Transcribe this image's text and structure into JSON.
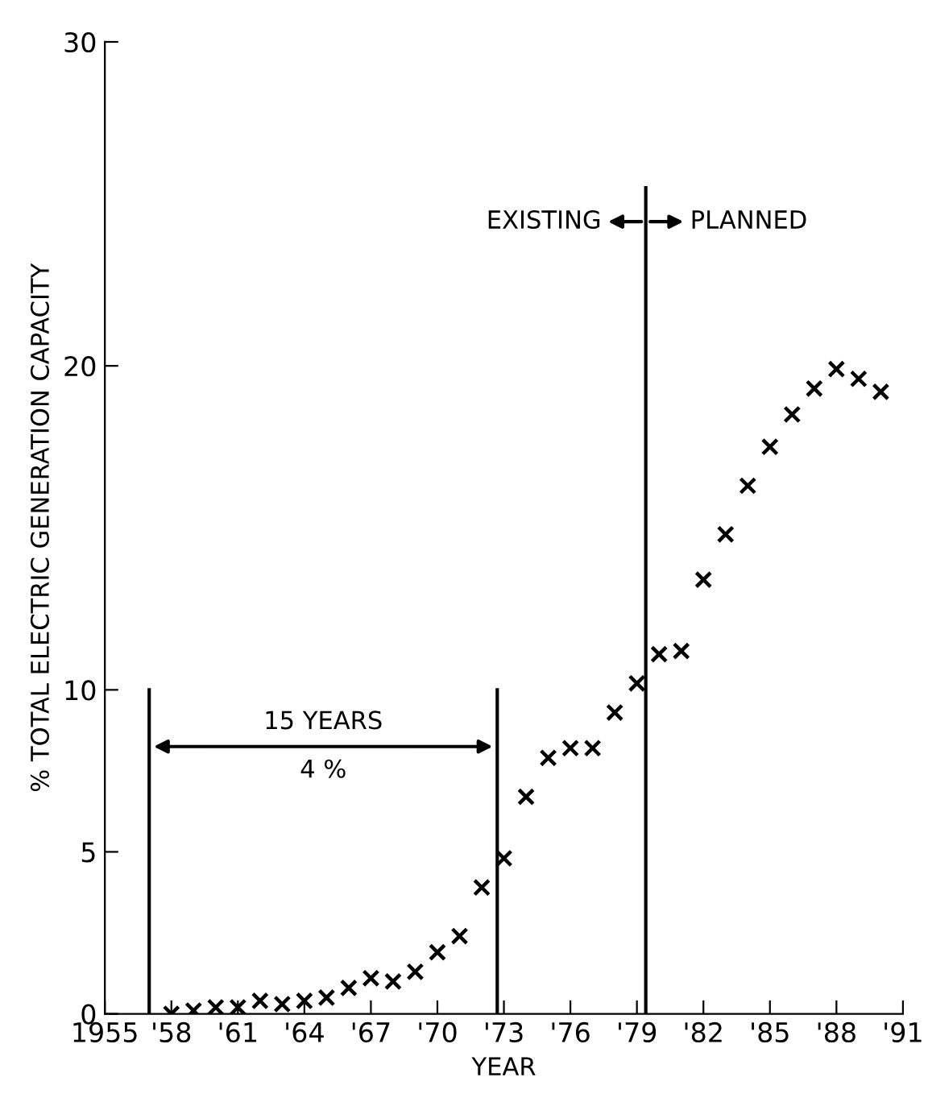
{
  "chart_data": {
    "type": "scatter",
    "xlabel": "YEAR",
    "ylabel": "% TOTAL ELECTRIC GENERATION CAPACITY",
    "xlim": [
      1955,
      1991
    ],
    "ylim": [
      0,
      30
    ],
    "xticks": [
      1955,
      {
        "value": 1958,
        "label": "'58"
      },
      {
        "value": 1961,
        "label": "'61"
      },
      {
        "value": 1964,
        "label": "'64"
      },
      {
        "value": 1967,
        "label": "'67"
      },
      {
        "value": 1970,
        "label": "'70"
      },
      {
        "value": 1973,
        "label": "'73"
      },
      {
        "value": 1976,
        "label": "'76"
      },
      {
        "value": 1979,
        "label": "'79"
      },
      {
        "value": 1982,
        "label": "'82"
      },
      {
        "value": 1985,
        "label": "'85"
      },
      {
        "value": 1988,
        "label": "'88"
      },
      {
        "value": 1991,
        "label": "'91"
      }
    ],
    "yticks": [
      0,
      5,
      10,
      20,
      30
    ],
    "grid": false,
    "legend": false,
    "marker": "cross",
    "series": [
      {
        "color": "#000000",
        "x": [
          1958,
          1959,
          1960,
          1961,
          1962,
          1963,
          1964,
          1965,
          1966,
          1967,
          1968,
          1969,
          1970,
          1971,
          1972,
          1973,
          1974,
          1975,
          1976,
          1977,
          1978,
          1979,
          1980,
          1981,
          1982,
          1983,
          1984,
          1985,
          1986,
          1987,
          1988,
          1989,
          1990
        ],
        "values": [
          0.0,
          0.1,
          0.2,
          0.2,
          0.4,
          0.3,
          0.4,
          0.5,
          0.8,
          1.1,
          1.0,
          1.3,
          1.9,
          2.4,
          3.9,
          4.8,
          6.7,
          7.9,
          8.2,
          8.2,
          9.3,
          10.2,
          11.1,
          11.2,
          13.4,
          14.8,
          16.3,
          17.5,
          18.5,
          19.3,
          19.9,
          19.6,
          19.2
        ]
      },
      {
        "type": "line",
        "color": "#000000",
        "marker": "none",
        "x": [
          1957,
          1957
        ],
        "values": [
          0,
          10
        ]
      },
      {
        "type": "line",
        "color": "#000000",
        "marker": "none",
        "x": [
          1972.7,
          1972.7
        ],
        "values": [
          0,
          10
        ]
      },
      {
        "type": "line",
        "color": "#000000",
        "marker": "none",
        "x": [
          1979.4,
          1979.4
        ],
        "values": [
          0,
          25.5
        ]
      }
    ],
    "annotations": [
      "15 YEARS",
      "4 %",
      "EXISTING",
      "PLANNED"
    ]
  }
}
